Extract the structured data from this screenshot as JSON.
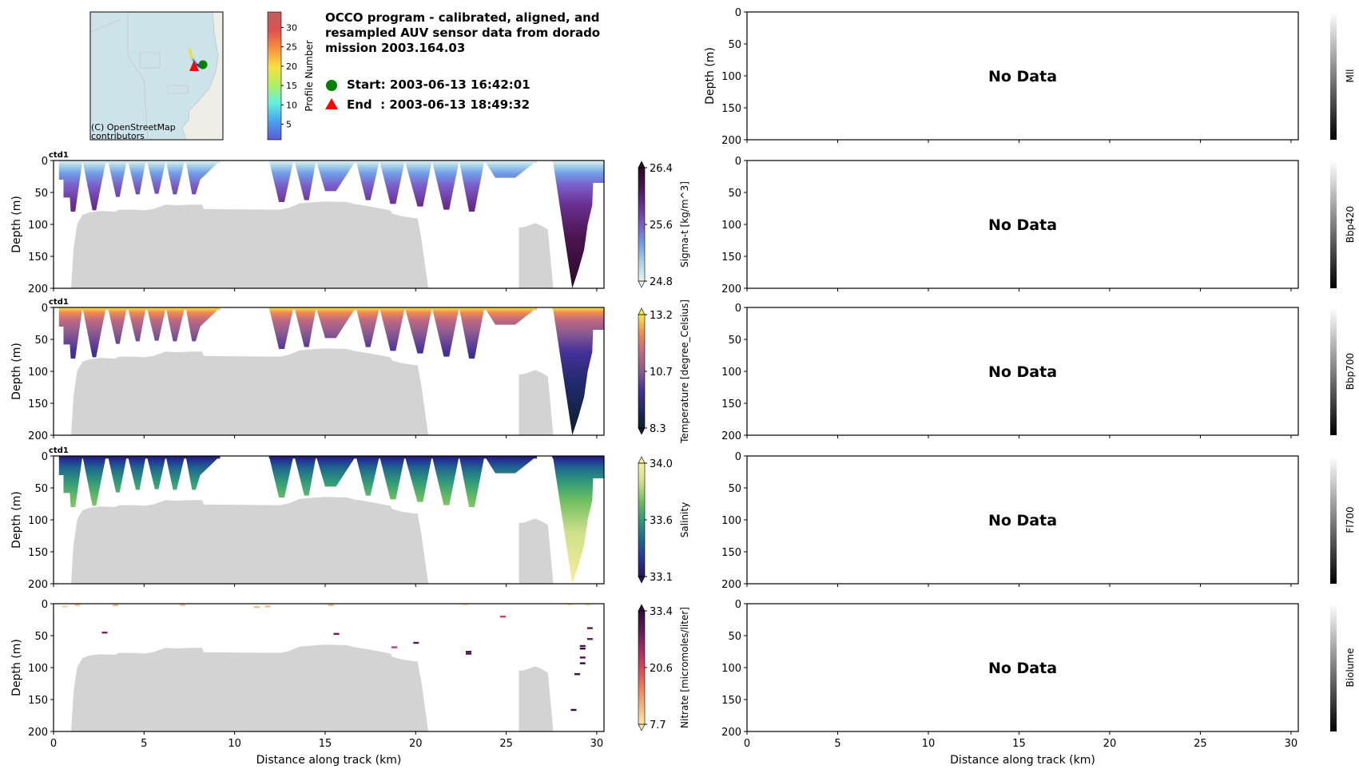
{
  "title": {
    "lines": [
      "OCCO program - calibrated, aligned, and",
      "resampled AUV sensor data from dorado",
      "mission 2003.164.03"
    ],
    "start": "Start: 2003-06-13 16:42:01",
    "end": "End  : 2003-06-13 18:49:32",
    "start_color": "#008000",
    "end_color": "#ff0000"
  },
  "map": {
    "attribution_lines": [
      "(C) OpenStreetMap",
      "contributors"
    ],
    "sea_color": "#cde3ea",
    "land_color": "#efeee6"
  },
  "profile_colorbar": {
    "label": "Profile Number",
    "ticks": [
      5,
      10,
      15,
      20,
      25,
      30
    ],
    "range": [
      1,
      34
    ],
    "colors": [
      "#5a5ad8",
      "#4aa0f0",
      "#60f0e0",
      "#b0f060",
      "#f8e040",
      "#f89040",
      "#e05050",
      "#c06060"
    ]
  },
  "seafloor": {
    "color": "#d3d3d3",
    "segments": [
      [
        [
          0.97,
          200
        ],
        [
          1.1,
          140
        ],
        [
          1.3,
          100
        ],
        [
          1.6,
          85
        ],
        [
          2.0,
          81
        ],
        [
          2.6,
          79
        ],
        [
          3.4,
          80
        ],
        [
          3.6,
          77
        ],
        [
          4.5,
          77
        ],
        [
          5.0,
          78
        ],
        [
          5.5,
          76
        ],
        [
          6.2,
          69
        ],
        [
          6.8,
          70
        ],
        [
          7.6,
          69
        ],
        [
          8.2,
          69
        ],
        [
          8.3,
          76
        ],
        [
          12.5,
          77
        ],
        [
          13.0,
          74
        ],
        [
          13.6,
          67
        ],
        [
          14.5,
          65
        ],
        [
          15.0,
          64
        ],
        [
          16.2,
          65
        ],
        [
          16.6,
          68
        ],
        [
          17.5,
          72
        ],
        [
          18.6,
          78
        ],
        [
          18.7,
          83
        ],
        [
          19.2,
          87
        ],
        [
          19.9,
          90
        ],
        [
          20.1,
          90
        ],
        [
          20.3,
          120
        ],
        [
          20.7,
          200
        ]
      ],
      [
        [
          25.7,
          200
        ],
        [
          25.7,
          105
        ],
        [
          26.0,
          104
        ],
        [
          26.6,
          98
        ],
        [
          27.0,
          103
        ],
        [
          27.3,
          108
        ],
        [
          27.6,
          200
        ]
      ]
    ]
  },
  "sampled_sections": [
    [
      [
        0.3,
        0
      ],
      [
        0.3,
        30
      ],
      [
        0.55,
        30
      ],
      [
        0.55,
        58
      ],
      [
        0.9,
        58
      ],
      [
        0.95,
        80
      ],
      [
        1.2,
        80
      ],
      [
        1.6,
        0
      ]
    ],
    [
      [
        1.6,
        0
      ],
      [
        2.15,
        78
      ],
      [
        2.35,
        78
      ],
      [
        2.9,
        0
      ]
    ],
    [
      [
        3.0,
        0
      ],
      [
        3.45,
        57
      ],
      [
        3.65,
        57
      ],
      [
        4.05,
        0
      ]
    ],
    [
      [
        4.1,
        0
      ],
      [
        4.55,
        53
      ],
      [
        4.75,
        53
      ],
      [
        5.1,
        0
      ]
    ],
    [
      [
        5.15,
        0
      ],
      [
        5.6,
        52
      ],
      [
        5.8,
        52
      ],
      [
        6.2,
        0
      ]
    ],
    [
      [
        6.2,
        0
      ],
      [
        6.6,
        53
      ],
      [
        6.8,
        53
      ],
      [
        7.25,
        0
      ]
    ],
    [
      [
        7.3,
        0
      ],
      [
        7.65,
        53
      ],
      [
        7.85,
        53
      ],
      [
        8.1,
        30
      ],
      [
        9.2,
        0
      ]
    ],
    [
      [
        11.9,
        0
      ],
      [
        12.45,
        65
      ],
      [
        12.75,
        65
      ],
      [
        13.25,
        0
      ]
    ],
    [
      [
        13.3,
        0
      ],
      [
        13.85,
        62
      ],
      [
        14.1,
        62
      ],
      [
        14.5,
        0
      ]
    ],
    [
      [
        14.5,
        0
      ],
      [
        15.0,
        48
      ],
      [
        15.6,
        48
      ],
      [
        16.7,
        0
      ]
    ],
    [
      [
        16.7,
        0
      ],
      [
        17.25,
        62
      ],
      [
        17.5,
        62
      ],
      [
        18.0,
        0
      ]
    ],
    [
      [
        18.0,
        0
      ],
      [
        18.6,
        68
      ],
      [
        18.9,
        68
      ],
      [
        19.4,
        0
      ]
    ],
    [
      [
        19.4,
        0
      ],
      [
        20.1,
        72
      ],
      [
        20.4,
        72
      ],
      [
        20.9,
        0
      ]
    ],
    [
      [
        20.9,
        0
      ],
      [
        21.55,
        77
      ],
      [
        21.85,
        77
      ],
      [
        22.4,
        0
      ]
    ],
    [
      [
        22.4,
        0
      ],
      [
        22.95,
        80
      ],
      [
        23.25,
        80
      ],
      [
        23.8,
        0
      ]
    ],
    [
      [
        23.8,
        0
      ],
      [
        24.4,
        27
      ],
      [
        25.5,
        27
      ],
      [
        26.7,
        0
      ]
    ],
    [
      [
        27.5,
        0
      ],
      [
        30.4,
        0
      ],
      [
        30.4,
        35
      ],
      [
        29.8,
        35
      ],
      [
        29.75,
        70
      ],
      [
        29.5,
        100
      ],
      [
        29.3,
        140
      ],
      [
        29.0,
        170
      ],
      [
        28.65,
        200
      ],
      [
        27.6,
        5
      ]
    ],
    [
      [
        0.3,
        0
      ],
      [
        9.2,
        0
      ],
      [
        9.2,
        4
      ],
      [
        0.3,
        4
      ]
    ],
    [
      [
        11.9,
        0
      ],
      [
        26.7,
        0
      ],
      [
        26.7,
        4
      ],
      [
        11.9,
        4
      ]
    ]
  ],
  "chart_data": [
    {
      "type": "heatmap",
      "title": "ctd1",
      "variable": "sigma_t",
      "xlabel": "",
      "ylabel": "Depth (m)",
      "xlim": [
        0,
        30.4
      ],
      "ylim": [
        200,
        0
      ],
      "xticks": [
        0,
        5,
        10,
        15,
        20,
        25,
        30
      ],
      "yticks": [
        0,
        50,
        100,
        150,
        200
      ],
      "colorbar": {
        "label": "Sigma-t [kg/m^3]",
        "ticks": [
          "26.4",
          "25.6",
          "24.8"
        ],
        "range": [
          24.8,
          26.4
        ],
        "colors": [
          "#e6f2f2",
          "#a9d3e6",
          "#6f9ee8",
          "#7a5cc8",
          "#6a2e90",
          "#4a1550",
          "#2a0a25"
        ]
      }
    },
    {
      "type": "heatmap",
      "title": "ctd1",
      "variable": "temperature",
      "xlabel": "",
      "ylabel": "Depth (m)",
      "xlim": [
        0,
        30.4
      ],
      "ylim": [
        200,
        0
      ],
      "xticks": [
        0,
        5,
        10,
        15,
        20,
        25,
        30
      ],
      "yticks": [
        0,
        50,
        100,
        150,
        200
      ],
      "colorbar": {
        "label": "Temperature [degree_Celsius]",
        "ticks": [
          "13.2",
          "10.7",
          "8.3"
        ],
        "range": [
          8.3,
          13.2
        ],
        "colors": [
          "#0b1d2c",
          "#1f2a6a",
          "#45309a",
          "#8a5a90",
          "#c06880",
          "#f08a50",
          "#f5e845"
        ]
      }
    },
    {
      "type": "heatmap",
      "title": "ctd1",
      "variable": "salinity",
      "xlabel": "",
      "ylabel": "Depth (m)",
      "xlim": [
        0,
        30.4
      ],
      "ylim": [
        200,
        0
      ],
      "xticks": [
        0,
        5,
        10,
        15,
        20,
        25,
        30
      ],
      "yticks": [
        0,
        50,
        100,
        150,
        200
      ],
      "colorbar": {
        "label": "Salinity",
        "ticks": [
          "34.0",
          "33.6",
          "33.1"
        ],
        "range": [
          33.1,
          34.0
        ],
        "colors": [
          "#26185e",
          "#23379a",
          "#1f6a8e",
          "#2f9a7a",
          "#70c060",
          "#d0e08a",
          "#f8ee9c"
        ]
      }
    },
    {
      "type": "scatter",
      "title": "",
      "variable": "nitrate",
      "xlabel": "Distance along track (km)",
      "ylabel": "Depth (m)",
      "xlim": [
        0,
        30.4
      ],
      "ylim": [
        200,
        0
      ],
      "xticks": [
        0,
        5,
        10,
        15,
        20,
        25,
        30
      ],
      "yticks": [
        0,
        50,
        100,
        150,
        200
      ],
      "colorbar": {
        "label": "Nitrate [micromoles/liter]",
        "ticks": [
          "33.4",
          "20.6",
          "7.7"
        ],
        "range": [
          7.7,
          33.4
        ],
        "colors": [
          "#fde6a8",
          "#f6b07a",
          "#ef7a5a",
          "#d4455a",
          "#a02a66",
          "#601a5a",
          "#2f0f3d"
        ]
      },
      "points": [
        [
          0.6,
          4,
          9
        ],
        [
          1.3,
          2,
          10
        ],
        [
          3.4,
          2,
          11
        ],
        [
          7.1,
          2,
          10
        ],
        [
          11.2,
          5,
          11
        ],
        [
          11.8,
          4,
          11
        ],
        [
          15.3,
          2,
          11
        ],
        [
          22.7,
          1,
          8
        ],
        [
          24.8,
          20,
          21
        ],
        [
          2.8,
          45,
          27
        ],
        [
          15.6,
          47,
          28
        ],
        [
          18.8,
          68,
          22
        ],
        [
          20.0,
          61,
          30
        ],
        [
          22.9,
          75,
          30
        ],
        [
          22.9,
          78,
          30
        ],
        [
          29.6,
          38,
          30
        ],
        [
          29.6,
          55,
          29
        ],
        [
          29.2,
          66,
          32
        ],
        [
          29.2,
          70,
          33
        ],
        [
          29.2,
          84,
          31
        ],
        [
          29.2,
          93,
          33
        ],
        [
          28.9,
          110,
          33
        ],
        [
          28.7,
          166,
          33.4
        ],
        [
          28.5,
          1,
          8
        ],
        [
          29.5,
          1,
          8
        ]
      ]
    },
    {
      "type": "heatmap",
      "annotation": "No Data",
      "ylabel": "Depth (m)",
      "xlabel": "",
      "xlim": [
        0,
        30.4
      ],
      "ylim": [
        200,
        0
      ],
      "xticks": [
        0,
        5,
        10,
        15,
        20,
        25,
        30
      ],
      "yticks": [
        0,
        50,
        100,
        150,
        200
      ],
      "colorbar": {
        "label": "Mll"
      }
    },
    {
      "type": "heatmap",
      "annotation": "No Data",
      "ylabel": "",
      "xlabel": "",
      "xlim": [
        0,
        30.4
      ],
      "ylim": [
        200,
        0
      ],
      "xticks": [
        0,
        5,
        10,
        15,
        20,
        25,
        30
      ],
      "yticks": [
        0,
        50,
        100,
        150,
        200
      ],
      "colorbar": {
        "label": "Bbp420"
      }
    },
    {
      "type": "heatmap",
      "annotation": "No Data",
      "ylabel": "",
      "xlabel": "",
      "xlim": [
        0,
        30.4
      ],
      "ylim": [
        200,
        0
      ],
      "xticks": [
        0,
        5,
        10,
        15,
        20,
        25,
        30
      ],
      "yticks": [
        0,
        50,
        100,
        150,
        200
      ],
      "colorbar": {
        "label": "Bbp700"
      }
    },
    {
      "type": "heatmap",
      "annotation": "No Data",
      "ylabel": "",
      "xlabel": "",
      "xlim": [
        0,
        30.4
      ],
      "ylim": [
        200,
        0
      ],
      "xticks": [
        0,
        5,
        10,
        15,
        20,
        25,
        30
      ],
      "yticks": [
        0,
        50,
        100,
        150,
        200
      ],
      "colorbar": {
        "label": "Fl700"
      }
    },
    {
      "type": "heatmap",
      "annotation": "No Data",
      "ylabel": "",
      "xlabel": "Distance along track (km)",
      "xlim": [
        0,
        30.4
      ],
      "ylim": [
        200,
        0
      ],
      "xticks": [
        0,
        5,
        10,
        15,
        20,
        25,
        30
      ],
      "yticks": [
        0,
        50,
        100,
        150,
        200
      ],
      "colorbar": {
        "label": "Biolume"
      }
    }
  ]
}
